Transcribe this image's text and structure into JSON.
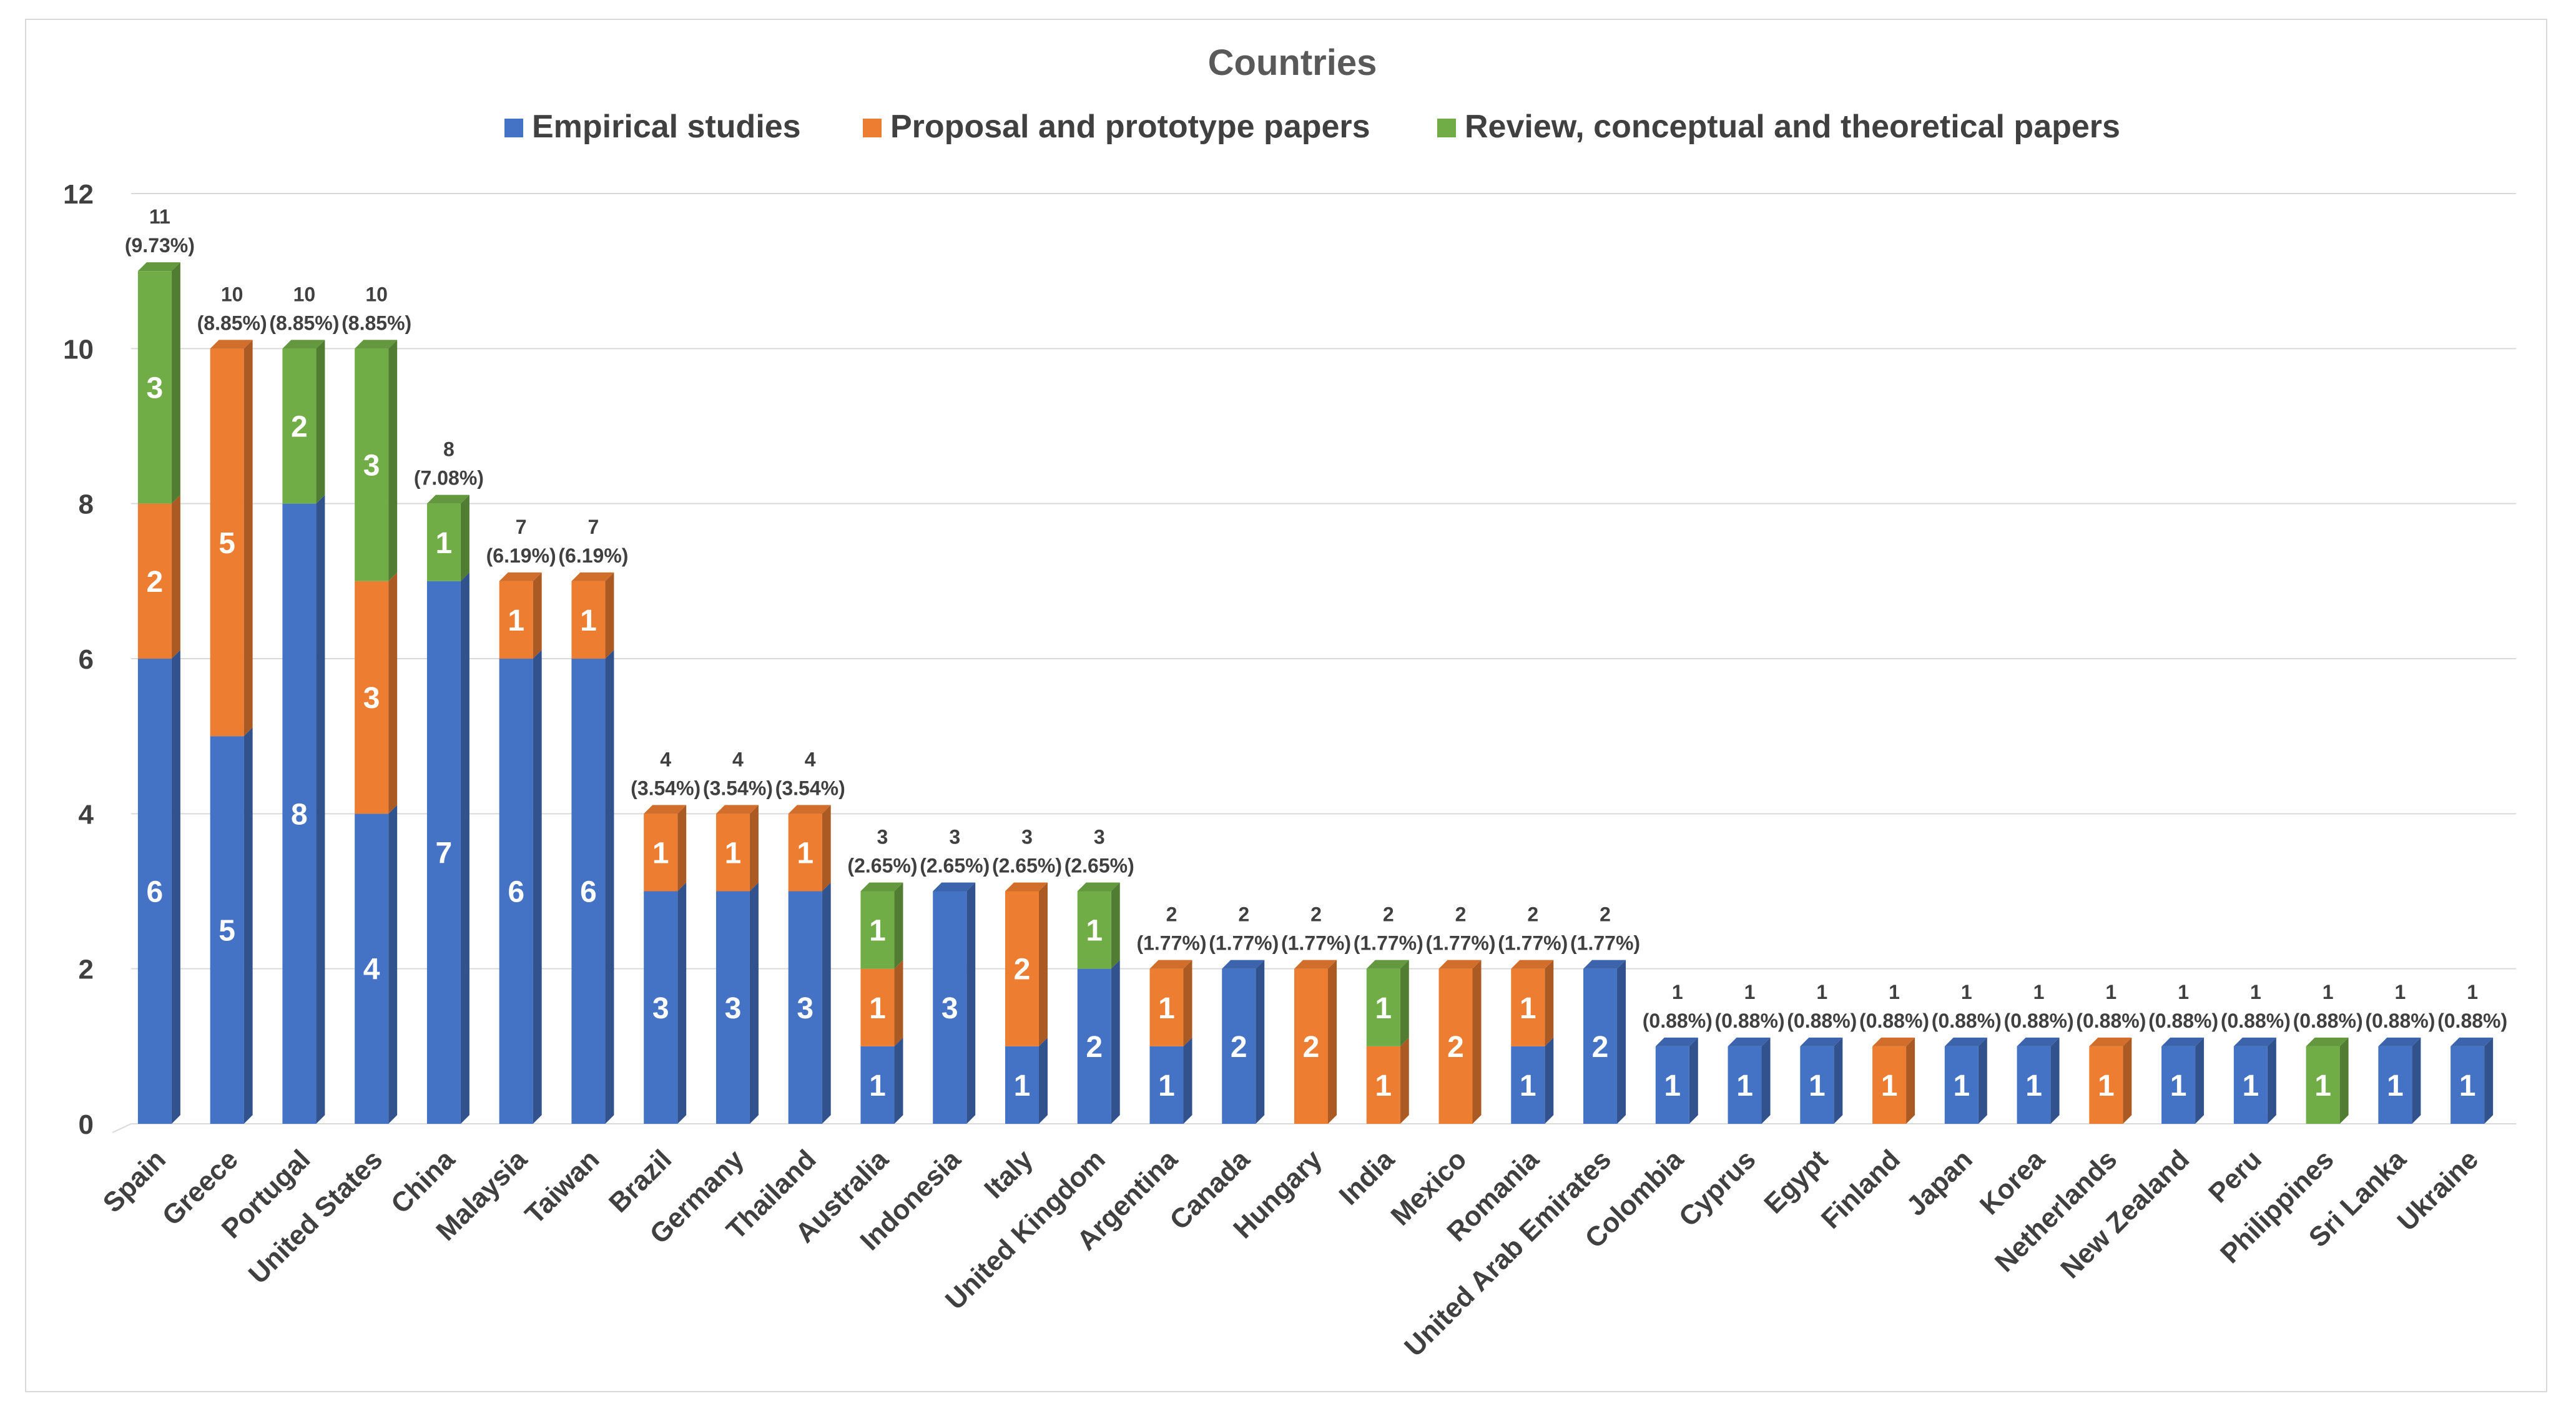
{
  "chart_data": {
    "type": "bar",
    "stacked": true,
    "title": "Countries",
    "xlabel": "",
    "ylabel": "",
    "ylim": [
      0,
      12
    ],
    "yticks": [
      "0",
      "2",
      "4",
      "6",
      "8",
      "10",
      "12"
    ],
    "legend_position": "top",
    "colors": {
      "empirical": "#4472C4",
      "proposal": "#ED7D31",
      "review": "#70AD47"
    },
    "categories": [
      "Spain",
      "Greece",
      "Portugal",
      "United States",
      "China",
      "Malaysia",
      "Taiwan",
      "Brazil",
      "Germany",
      "Thailand",
      "Australia",
      "Indonesia",
      "Italy",
      "United Kingdom",
      "Argentina",
      "Canada",
      "Hungary",
      "India",
      "Mexico",
      "Romania",
      "United Arab Emirates",
      "Colombia",
      "Cyprus",
      "Egypt",
      "Finland",
      "Japan",
      "Korea",
      "Netherlands",
      "New Zealand",
      "Peru",
      "Philippines",
      "Sri Lanka",
      "Ukraine"
    ],
    "series": [
      {
        "name": "Empirical studies",
        "key": "empirical",
        "values": [
          6,
          5,
          8,
          4,
          7,
          6,
          6,
          3,
          3,
          3,
          1,
          3,
          1,
          2,
          1,
          2,
          0,
          0,
          0,
          1,
          2,
          1,
          1,
          1,
          0,
          1,
          1,
          0,
          1,
          1,
          0,
          1,
          1
        ]
      },
      {
        "name": "Proposal and prototype papers",
        "key": "proposal",
        "values": [
          2,
          5,
          0,
          3,
          0,
          1,
          1,
          1,
          1,
          1,
          1,
          0,
          2,
          0,
          1,
          0,
          2,
          1,
          2,
          1,
          0,
          0,
          0,
          0,
          1,
          0,
          0,
          1,
          0,
          0,
          0,
          0,
          0
        ]
      },
      {
        "name": "Review, conceptual and theoretical papers",
        "key": "review",
        "values": [
          3,
          0,
          2,
          3,
          1,
          0,
          0,
          0,
          0,
          0,
          1,
          0,
          0,
          1,
          0,
          0,
          0,
          1,
          0,
          0,
          0,
          0,
          0,
          0,
          0,
          0,
          0,
          0,
          0,
          0,
          1,
          0,
          0
        ]
      }
    ],
    "totals": [
      11,
      10,
      10,
      10,
      8,
      7,
      7,
      4,
      4,
      4,
      3,
      3,
      3,
      3,
      2,
      2,
      2,
      2,
      2,
      2,
      2,
      1,
      1,
      1,
      1,
      1,
      1,
      1,
      1,
      1,
      1,
      1,
      1
    ],
    "percentages": [
      "(9.73%)",
      "(8.85%)",
      "(8.85%)",
      "(8.85%)",
      "(7.08%)",
      "(6.19%)",
      "(6.19%)",
      "(3.54%)",
      "(3.54%)",
      "(3.54%)",
      "(2.65%)",
      "(2.65%)",
      "(2.65%)",
      "(2.65%)",
      "(1.77%)",
      "(1.77%)",
      "(1.77%)",
      "(1.77%)",
      "(1.77%)",
      "(1.77%)",
      "(1.77%)",
      "(0.88%)",
      "(0.88%)",
      "(0.88%)",
      "(0.88%)",
      "(0.88%)",
      "(0.88%)",
      "(0.88%)",
      "(0.88%)",
      "(0.88%)",
      "(0.88%)",
      "(0.88%)",
      "(0.88%)"
    ]
  }
}
